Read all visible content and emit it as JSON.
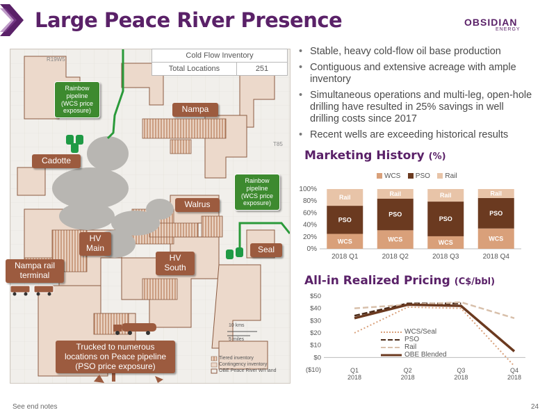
{
  "header": {
    "title": "Large Peace River Presence",
    "logo_main": "OBSIDIAN",
    "logo_sub": "ENERGY"
  },
  "inventory_table": {
    "header": "Cold Flow Inventory",
    "row_label": "Total Locations",
    "row_value": "251"
  },
  "map": {
    "labels": {
      "rainbow_left": "Rainbow pipeline (WCS price exposure)",
      "rainbow_right": "Rainbow pipeline (WCS price exposure)",
      "nampa": "Nampa",
      "cadotte": "Cadotte",
      "walrus": "Walrus",
      "hv_main": "HV Main",
      "hv_south": "HV South",
      "seal": "Seal",
      "nampa_rail": "Nampa rail terminal",
      "trucked": "Trucked to numerous locations on Peace pipeline (PSO price exposure)"
    },
    "grid_labels": {
      "range": "R19W5",
      "township": "T85"
    },
    "scale": {
      "km": "10 kms",
      "miles": "5 miles"
    },
    "legend": [
      "Tiered inventory",
      "Contingency inventory",
      "OBE Peace River W/I land"
    ]
  },
  "bullets": [
    "Stable, heavy cold-flow oil base production",
    "Contiguous and extensive acreage with ample inventory",
    "Simultaneous operations and multi-leg, open-hole drilling have resulted in 25% savings in well drilling costs since 2017",
    "Recent wells are exceeding historical results"
  ],
  "marketing": {
    "title": "Marketing History",
    "unit": "(%)"
  },
  "pricing": {
    "title": "All-in Realized Pricing",
    "unit": "(C$/bbl)"
  },
  "colors": {
    "purple": "#5a2168",
    "wcs": "#d9a07a",
    "pso": "#6b3a20",
    "rail": "#e8c4a8",
    "label_brown": "#9c5b3f",
    "label_green": "#3d8a2f"
  },
  "footer": {
    "notes": "See end notes",
    "page": "24"
  },
  "chart_data": [
    {
      "type": "bar",
      "stacked": true,
      "categories": [
        "2018 Q1",
        "2018 Q2",
        "2018 Q3",
        "2018 Q4"
      ],
      "series": [
        {
          "name": "WCS",
          "values": [
            25,
            31,
            21,
            34
          ],
          "labels": [
            "WCS",
            "WCS",
            "WCS",
            "WCS"
          ]
        },
        {
          "name": "PSO",
          "values": [
            47,
            53,
            58,
            51
          ],
          "labels": [
            "PSO",
            "PSO",
            "PSO",
            "PSO"
          ]
        },
        {
          "name": "Rail",
          "values": [
            28,
            16,
            21,
            15
          ],
          "labels": [
            "Rail",
            "Rail",
            "Rail",
            "Rail"
          ]
        }
      ],
      "yticks": [
        "0%",
        "20%",
        "40%",
        "60%",
        "80%",
        "100%"
      ],
      "ylim": [
        0,
        100
      ],
      "legend": "top"
    },
    {
      "type": "line",
      "categories": [
        "Q1 2018",
        "Q2 2018",
        "Q3 2018",
        "Q4 2018"
      ],
      "series": [
        {
          "name": "WCS/Seal",
          "values": [
            20,
            41,
            40,
            -7
          ]
        },
        {
          "name": "PSO",
          "values": [
            34,
            44,
            44,
            null
          ]
        },
        {
          "name": "Rail",
          "values": [
            40,
            43,
            45,
            32
          ]
        },
        {
          "name": "OBE Blended",
          "values": [
            32,
            43,
            42,
            5
          ]
        }
      ],
      "yticks": [
        "($10)",
        "$0",
        "$10",
        "$20",
        "$30",
        "$40",
        "$50"
      ],
      "ylim": [
        -10,
        50
      ],
      "legend": "bottom-left"
    }
  ]
}
